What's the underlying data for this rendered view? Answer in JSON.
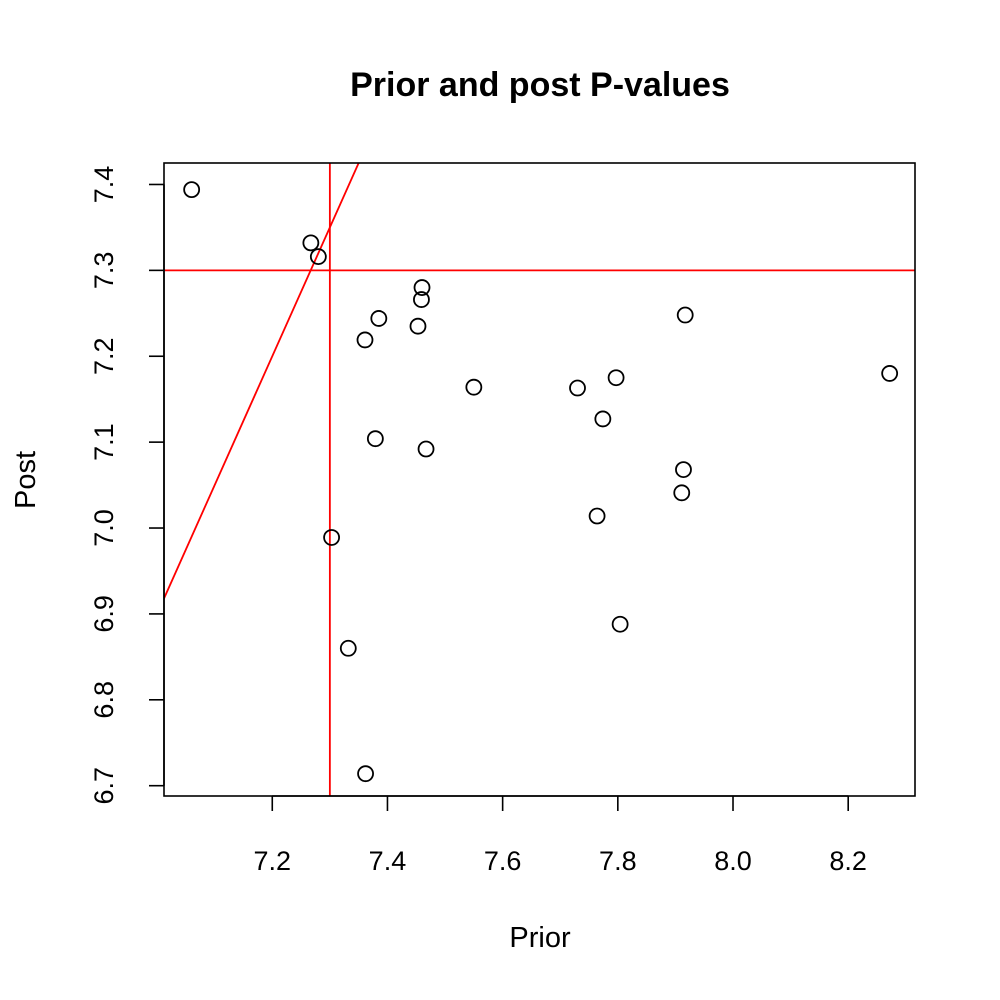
{
  "chart_data": {
    "type": "scatter",
    "title": "Prior and post P-values",
    "xlabel": "Prior",
    "ylabel": "Post",
    "xlim": [
      7.012,
      8.316
    ],
    "ylim": [
      6.688,
      7.425
    ],
    "x_ticks": [
      "7.2",
      "7.4",
      "7.6",
      "7.8",
      "8.0",
      "8.2"
    ],
    "y_ticks": [
      "6.7",
      "6.8",
      "6.9",
      "7.0",
      "7.1",
      "7.2",
      "7.3",
      "7.4"
    ],
    "grid": false,
    "legend": "none",
    "colors": {
      "points": "#000000",
      "reference_lines": "#ff0000"
    },
    "reference_lines": [
      {
        "kind": "vertical",
        "x": 7.3
      },
      {
        "kind": "horizontal",
        "y": 7.3
      },
      {
        "kind": "abline",
        "intercept": -3.6,
        "slope": 1.5
      }
    ],
    "points": [
      {
        "x": 7.06,
        "y": 7.394
      },
      {
        "x": 7.267,
        "y": 7.332
      },
      {
        "x": 7.28,
        "y": 7.316
      },
      {
        "x": 7.46,
        "y": 7.28
      },
      {
        "x": 7.459,
        "y": 7.266
      },
      {
        "x": 7.385,
        "y": 7.244
      },
      {
        "x": 7.453,
        "y": 7.235
      },
      {
        "x": 7.361,
        "y": 7.219
      },
      {
        "x": 7.917,
        "y": 7.248
      },
      {
        "x": 7.55,
        "y": 7.164
      },
      {
        "x": 7.73,
        "y": 7.163
      },
      {
        "x": 7.797,
        "y": 7.175
      },
      {
        "x": 8.272,
        "y": 7.18
      },
      {
        "x": 7.774,
        "y": 7.127
      },
      {
        "x": 7.379,
        "y": 7.104
      },
      {
        "x": 7.467,
        "y": 7.092
      },
      {
        "x": 7.914,
        "y": 7.068
      },
      {
        "x": 7.911,
        "y": 7.041
      },
      {
        "x": 7.764,
        "y": 7.014
      },
      {
        "x": 7.303,
        "y": 6.989
      },
      {
        "x": 7.804,
        "y": 6.888
      },
      {
        "x": 7.332,
        "y": 6.86
      },
      {
        "x": 7.362,
        "y": 6.714
      }
    ]
  }
}
